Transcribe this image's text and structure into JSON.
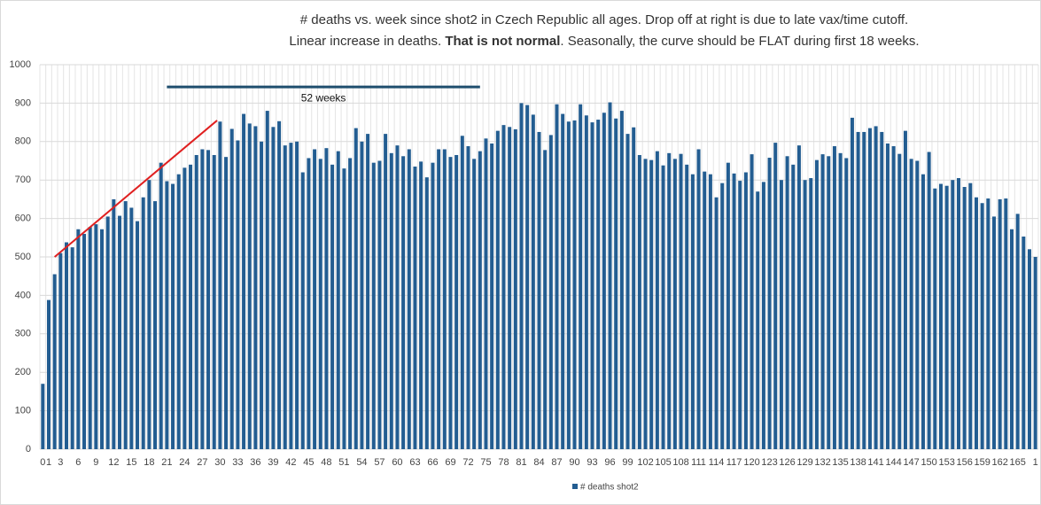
{
  "chart_data": {
    "type": "bar",
    "title": [
      "# deaths vs. week since shot2 in Czech Republic all ages. Drop off at right is due to late vax/time cutoff.",
      "Linear increase in deaths. ",
      "That is not normal",
      ". Seasonally, the curve should be FLAT during first 18 weeks."
    ],
    "categories": [
      "0",
      "1",
      null,
      "3",
      null,
      null,
      "6",
      null,
      null,
      "9",
      null,
      null,
      "12",
      null,
      null,
      "15",
      null,
      null,
      "18",
      null,
      null,
      "21",
      null,
      null,
      "24",
      null,
      null,
      "27",
      null,
      null,
      "30",
      null,
      null,
      "33",
      null,
      null,
      "36",
      null,
      null,
      "39",
      null,
      null,
      "42",
      null,
      null,
      "45",
      null,
      null,
      "48",
      null,
      null,
      "51",
      null,
      null,
      "54",
      null,
      null,
      "57",
      null,
      null,
      "60",
      null,
      null,
      "63",
      null,
      null,
      "66",
      null,
      null,
      "69",
      null,
      null,
      "72",
      null,
      null,
      "75",
      null,
      null,
      "78",
      null,
      null,
      "81",
      null,
      null,
      "84",
      null,
      null,
      "87",
      null,
      null,
      "90",
      null,
      null,
      "93",
      null,
      null,
      "96",
      null,
      null,
      "99",
      null,
      null,
      "102",
      null,
      null,
      "105",
      null,
      null,
      "108",
      null,
      null,
      "111",
      null,
      null,
      "114",
      null,
      null,
      "117",
      null,
      null,
      "120",
      null,
      null,
      "123",
      null,
      null,
      "126",
      null,
      null,
      "129",
      null,
      null,
      "132",
      null,
      null,
      "135",
      null,
      null,
      "138",
      null,
      null,
      "141",
      null,
      null,
      "144",
      null,
      null,
      "147",
      null,
      null,
      "150",
      null,
      null,
      "153",
      null,
      null,
      "156",
      null,
      null,
      "159",
      null,
      null,
      "162",
      null,
      null,
      "165",
      null,
      null,
      "1"
    ],
    "series": [
      {
        "name": "# deaths shot2",
        "color": "#235d91",
        "values": [
          170,
          388,
          455,
          510,
          538,
          525,
          572,
          560,
          578,
          585,
          572,
          605,
          650,
          607,
          645,
          628,
          593,
          655,
          700,
          645,
          745,
          697,
          690,
          715,
          732,
          740,
          765,
          780,
          778,
          765,
          852,
          760,
          833,
          803,
          872,
          847,
          840,
          800,
          880,
          838,
          853,
          790,
          797,
          800,
          720,
          757,
          780,
          755,
          783,
          740,
          775,
          730,
          757,
          835,
          800,
          820,
          745,
          750,
          820,
          770,
          790,
          762,
          780,
          735,
          748,
          707,
          745,
          780,
          780,
          760,
          765,
          815,
          788,
          755,
          775,
          808,
          795,
          828,
          843,
          838,
          832,
          900,
          895,
          870,
          825,
          778,
          817,
          897,
          872,
          852,
          855,
          897,
          868,
          850,
          857,
          875,
          902,
          860,
          880,
          820,
          837,
          765,
          755,
          752,
          775,
          738,
          770,
          755,
          768,
          740,
          715,
          780,
          722,
          715,
          655,
          692,
          745,
          717,
          698,
          720,
          767,
          670,
          695,
          758,
          797,
          700,
          762,
          740,
          790,
          700,
          705,
          752,
          767,
          762,
          788,
          770,
          757,
          862,
          825,
          825,
          835,
          840,
          825,
          795,
          788,
          768,
          828,
          755,
          750,
          715,
          773,
          678,
          690,
          685,
          700,
          705,
          682,
          692,
          655,
          640,
          652,
          605,
          650,
          652,
          572,
          612,
          553,
          520,
          500
        ]
      }
    ],
    "ylim": [
      0,
      1000
    ],
    "yticks": [
      0,
      100,
      200,
      300,
      400,
      500,
      600,
      700,
      800,
      900,
      1000
    ],
    "grid": true,
    "annotations": [
      {
        "text": "52 weeks",
        "x": [
          21,
          74
        ],
        "y": 942,
        "color": "#1f4e6e"
      }
    ],
    "trend_line": {
      "x": [
        2,
        29.5
      ],
      "y": [
        500,
        855
      ],
      "color": "#e02020"
    }
  }
}
